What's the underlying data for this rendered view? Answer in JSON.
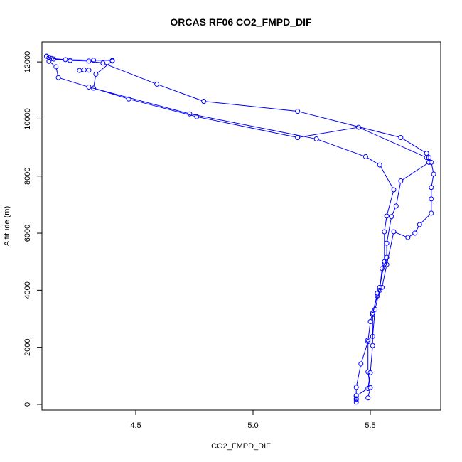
{
  "chart_data": {
    "type": "line",
    "title": "ORCAS RF06 CO2_FMPD_DIF",
    "xlabel": "CO2_FMPD_DIF",
    "ylabel": "Altitude (m)",
    "xlim": [
      4.1,
      5.8
    ],
    "ylim": [
      -200,
      12700
    ],
    "xticks": [
      4.5,
      5.0,
      5.5
    ],
    "yticks": [
      0,
      2000,
      4000,
      6000,
      8000,
      10000,
      12000
    ],
    "grid": false,
    "legend": "none",
    "marker": "open-circle",
    "color": "#0000ff",
    "series": [
      {
        "values": [
          [
            5.44,
            80
          ],
          [
            5.44,
            200
          ],
          [
            5.44,
            300
          ],
          [
            5.44,
            600
          ],
          [
            5.46,
            1420
          ],
          [
            5.49,
            2200
          ],
          [
            5.5,
            2900
          ],
          [
            5.51,
            3200
          ],
          [
            5.53,
            3800
          ],
          [
            5.55,
            4100
          ],
          [
            5.57,
            4900
          ],
          [
            5.6,
            6050
          ],
          [
            5.66,
            5850
          ],
          [
            5.69,
            6000
          ],
          [
            5.71,
            6300
          ],
          [
            5.76,
            6700
          ],
          [
            5.76,
            7200
          ],
          [
            5.76,
            7600
          ],
          [
            5.77,
            8070
          ],
          [
            5.76,
            8480
          ],
          [
            5.75,
            8650
          ],
          [
            5.74,
            8800
          ],
          [
            5.63,
            9350
          ],
          [
            5.19,
            10270
          ],
          [
            4.79,
            10620
          ],
          [
            4.59,
            11220
          ],
          [
            4.36,
            11960
          ],
          [
            4.3,
            12030
          ],
          [
            4.22,
            12050
          ],
          [
            4.15,
            12100
          ],
          [
            4.13,
            12150
          ],
          [
            4.12,
            12200
          ]
        ]
      },
      {
        "values": [
          [
            4.12,
            12200
          ],
          [
            4.14,
            12120
          ],
          [
            4.2,
            12080
          ],
          [
            4.32,
            12060
          ],
          [
            4.4,
            12050
          ],
          [
            4.4,
            12030
          ],
          [
            4.33,
            11570
          ],
          [
            4.32,
            11080
          ],
          [
            4.47,
            10700
          ],
          [
            4.76,
            10080
          ],
          [
            5.19,
            9350
          ],
          [
            5.45,
            9710
          ],
          [
            5.74,
            8650
          ],
          [
            5.75,
            8480
          ],
          [
            5.63,
            7830
          ],
          [
            5.61,
            6950
          ],
          [
            5.59,
            6580
          ],
          [
            5.57,
            5650
          ],
          [
            5.57,
            5150
          ],
          [
            5.56,
            4920
          ],
          [
            5.55,
            4760
          ],
          [
            5.54,
            4000
          ],
          [
            5.52,
            3330
          ],
          [
            5.51,
            2380
          ],
          [
            5.49,
            2260
          ],
          [
            5.49,
            1140
          ],
          [
            5.5,
            590
          ],
          [
            5.49,
            230
          ]
        ]
      },
      {
        "values": [
          [
            4.13,
            12020
          ],
          [
            4.16,
            11830
          ],
          [
            4.17,
            11450
          ],
          [
            4.3,
            11120
          ],
          [
            4.73,
            10180
          ],
          [
            5.27,
            9300
          ],
          [
            5.48,
            8680
          ],
          [
            5.54,
            8390
          ],
          [
            5.6,
            7520
          ],
          [
            5.57,
            6600
          ],
          [
            5.56,
            6050
          ],
          [
            5.56,
            5000
          ],
          [
            5.54,
            4100
          ],
          [
            5.53,
            3900
          ],
          [
            5.51,
            3150
          ],
          [
            5.51,
            2060
          ],
          [
            5.5,
            1110
          ],
          [
            5.49,
            560
          ],
          [
            5.44,
            300
          ],
          [
            5.44,
            170
          ]
        ]
      },
      {
        "values": [
          [
            4.26,
            11700
          ],
          [
            4.28,
            11720
          ],
          [
            4.3,
            11710
          ]
        ]
      }
    ]
  }
}
